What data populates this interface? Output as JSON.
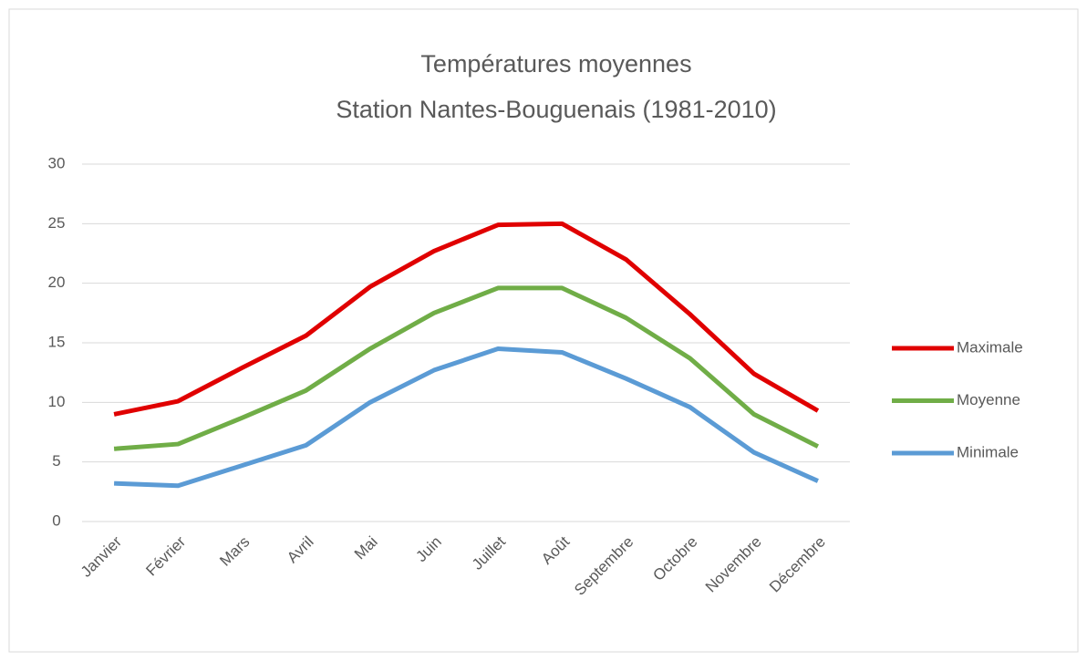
{
  "chart_data": {
    "type": "line",
    "title": "Températures moyennes",
    "subtitle": "Station Nantes-Bouguenais (1981-2010)",
    "categories": [
      "Janvier",
      "Février",
      "Mars",
      "Avril",
      "Mai",
      "Juin",
      "Juillet",
      "Août",
      "Septembre",
      "Octobre",
      "Novembre",
      "Décembre"
    ],
    "series": [
      {
        "name": "Maximale",
        "color": "#e00000",
        "values": [
          9.0,
          10.1,
          12.9,
          15.6,
          19.7,
          22.7,
          24.9,
          25.0,
          22.0,
          17.4,
          12.4,
          9.3
        ]
      },
      {
        "name": "Moyenne",
        "color": "#70ad47",
        "values": [
          6.1,
          6.5,
          8.7,
          11.0,
          14.5,
          17.5,
          19.6,
          19.6,
          17.1,
          13.7,
          9.0,
          6.3
        ]
      },
      {
        "name": "Minimale",
        "color": "#5b9bd5",
        "values": [
          3.2,
          3.0,
          4.7,
          6.4,
          10.0,
          12.7,
          14.5,
          14.2,
          12.0,
          9.6,
          5.8,
          3.4
        ]
      }
    ],
    "ylim": [
      0,
      30
    ],
    "yticks": [
      0,
      5,
      10,
      15,
      20,
      25,
      30
    ],
    "grid": true,
    "legend": "right"
  }
}
